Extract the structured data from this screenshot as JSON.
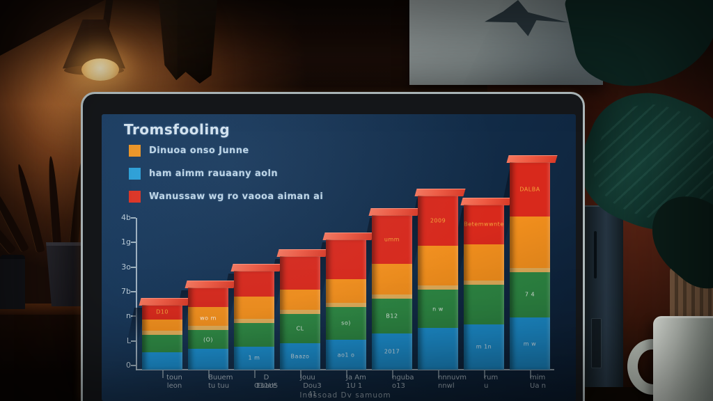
{
  "screen": {
    "title": "Tromsfooling",
    "legend": [
      {
        "label": "Dinuoa onso Junne",
        "color": "#f0941f"
      },
      {
        "label": "ham aimm rauaany aoln",
        "color": "#2b9fd6"
      },
      {
        "label": "Wanussaw wg ro vaooa aiman ai",
        "color": "#e0301e"
      }
    ],
    "axis_caption": "Inussoad Dv samuom"
  },
  "chart_data": {
    "type": "bar",
    "subtype": "3d-stacked-column",
    "title": "Tromsfooling",
    "background": "#14304e",
    "legend_position": "top-left",
    "grid": false,
    "xlabel": "Inussoad Dv samuom",
    "ylabel": "",
    "y_ticks": [
      "4b",
      "1g",
      "3o",
      "7b",
      "n",
      "L",
      "0"
    ],
    "categories": [
      [
        "toun leon"
      ],
      [
        "Buuem",
        "tu tuu"
      ],
      [
        "D Euare",
        "O31U5"
      ],
      [
        "Jouu",
        "Dou3 41"
      ],
      [
        "Ja Am",
        "1U 1"
      ],
      [
        "nguba",
        "o13"
      ],
      [
        "nnnuvm",
        "nnwl"
      ],
      [
        "rum",
        "u"
      ],
      [
        "mim",
        "Ua n"
      ]
    ],
    "series": [
      {
        "name": "blue",
        "color": "#1e95d8",
        "values": [
          4.6,
          5.5,
          6.1,
          7.0,
          7.9,
          9.6,
          11.0,
          12.0,
          13.8
        ]
      },
      {
        "name": "green",
        "color": "#2f8a45",
        "values": [
          4.6,
          5.0,
          6.3,
          7.7,
          8.7,
          9.2,
          10.1,
          10.5,
          12.0
        ]
      },
      {
        "name": "orange",
        "color": "#f28f1d",
        "values": [
          4.1,
          6.1,
          7.0,
          6.4,
          7.4,
          9.2,
          11.6,
          10.7,
          14.7
        ]
      },
      {
        "name": "red",
        "color": "#d8291c",
        "values": [
          3.9,
          5.2,
          6.8,
          9.0,
          10.5,
          12.9,
          13.3,
          10.5,
          14.4
        ]
      }
    ],
    "segment_labels": [
      {
        "bar": 1,
        "seg": "red",
        "text": "D10"
      },
      {
        "bar": 2,
        "seg": "orange",
        "text": "wo m"
      },
      {
        "bar": 2,
        "seg": "green",
        "text": "(O)"
      },
      {
        "bar": 3,
        "seg": "blue",
        "text": "1 m"
      },
      {
        "bar": 4,
        "seg": "blue",
        "text": "Baazo"
      },
      {
        "bar": 4,
        "seg": "green",
        "text": "CL"
      },
      {
        "bar": 5,
        "seg": "green",
        "text": "so)"
      },
      {
        "bar": 5,
        "seg": "blue",
        "text": "ao1 o"
      },
      {
        "bar": 6,
        "seg": "blue",
        "text": "2017"
      },
      {
        "bar": 6,
        "seg": "green",
        "text": "B12"
      },
      {
        "bar": 6,
        "seg": "red",
        "text": "umm"
      },
      {
        "bar": 7,
        "seg": "red",
        "text": "2009"
      },
      {
        "bar": 7,
        "seg": "green",
        "text": "n w"
      },
      {
        "bar": 8,
        "seg": "red",
        "text": "Betemwwnte"
      },
      {
        "bar": 8,
        "seg": "blue",
        "text": "m 1n"
      },
      {
        "bar": 9,
        "seg": "red",
        "text": "DALBA"
      },
      {
        "bar": 9,
        "seg": "green",
        "text": "7 4"
      },
      {
        "bar": 9,
        "seg": "blue",
        "text": "m w"
      }
    ]
  }
}
